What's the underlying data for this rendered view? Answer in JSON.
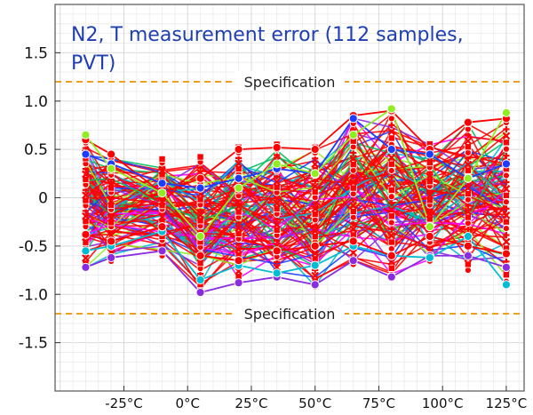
{
  "chart_data": {
    "type": "line",
    "title_line1": "N2, T measurement error (112 samples,",
    "title_line2": "PVT)",
    "title_color": "#1f3fb0",
    "spec_label": "Specification",
    "spec_upper": 1.2,
    "spec_lower": -1.2,
    "spec_color": "#f0a020",
    "ylim": [
      -2.0,
      2.0
    ],
    "y_ticks": [
      1.5,
      1.0,
      0.5,
      0,
      -0.5,
      -1.0,
      -1.5
    ],
    "y_tick_labels": [
      "1.5",
      "1.0",
      "0.5",
      "0",
      "-0.5",
      "-1.0",
      "-1.5"
    ],
    "xlim": [
      -52,
      132
    ],
    "x_ticks": [
      -25,
      0,
      25,
      50,
      75,
      100,
      125
    ],
    "x_tick_labels": [
      "-25°C",
      "0°C",
      "25°C",
      "50°C",
      "75°C",
      "100°C",
      "125°C"
    ],
    "x": [
      -40,
      -30,
      -10,
      5,
      20,
      35,
      50,
      65,
      80,
      95,
      110,
      125
    ],
    "grid": true,
    "sample_count": 112,
    "envelope": {
      "upper": [
        0.65,
        0.48,
        0.42,
        0.45,
        0.55,
        0.58,
        0.55,
        0.86,
        0.92,
        0.58,
        0.8,
        0.88
      ],
      "lower": [
        -0.76,
        -0.68,
        -0.62,
        -0.98,
        -0.9,
        -0.86,
        -0.95,
        -0.72,
        -0.83,
        -0.68,
        -0.78,
        -0.9
      ]
    },
    "highlighted_series": [
      {
        "name": "",
        "color": "#ff0000",
        "values": [
          0.6,
          0.45,
          0.05,
          0.2,
          0.5,
          0.52,
          0.5,
          0.85,
          0.9,
          0.5,
          0.78,
          0.82
        ]
      },
      {
        "name": "",
        "color": "#8a2be2",
        "values": [
          -0.72,
          -0.62,
          -0.55,
          -0.98,
          -0.88,
          -0.82,
          -0.9,
          -0.65,
          -0.82,
          -0.6,
          -0.6,
          -0.72
        ]
      },
      {
        "name": "",
        "color": "#00bcd4",
        "values": [
          -0.55,
          -0.5,
          -0.35,
          -0.85,
          -0.7,
          -0.78,
          -0.7,
          -0.5,
          -0.6,
          -0.62,
          -0.4,
          -0.9
        ]
      },
      {
        "name": "",
        "color": "#1e3cff",
        "values": [
          0.45,
          0.35,
          0.15,
          0.1,
          0.2,
          0.3,
          0.25,
          0.82,
          0.5,
          0.45,
          0.2,
          0.35
        ]
      },
      {
        "name": "",
        "color": "#90ee20",
        "values": [
          0.65,
          0.3,
          0.05,
          -0.4,
          0.1,
          0.35,
          0.25,
          0.65,
          0.92,
          -0.3,
          0.2,
          0.88
        ]
      },
      {
        "name": "",
        "color": "#ff0000",
        "values": [
          -0.38,
          -0.45,
          -0.3,
          -0.6,
          -0.65,
          -0.55,
          -0.5,
          -0.45,
          -0.6,
          -0.4,
          -0.5,
          -0.58
        ]
      }
    ],
    "series_colors": [
      "#ff0000",
      "#ff0000",
      "#ff0000",
      "#ff0000",
      "#ff0000",
      "#8a2be2",
      "#1e3cff",
      "#00bcd4",
      "#90ee20",
      "#ff00ff",
      "#00c060",
      "#ff0000"
    ]
  }
}
